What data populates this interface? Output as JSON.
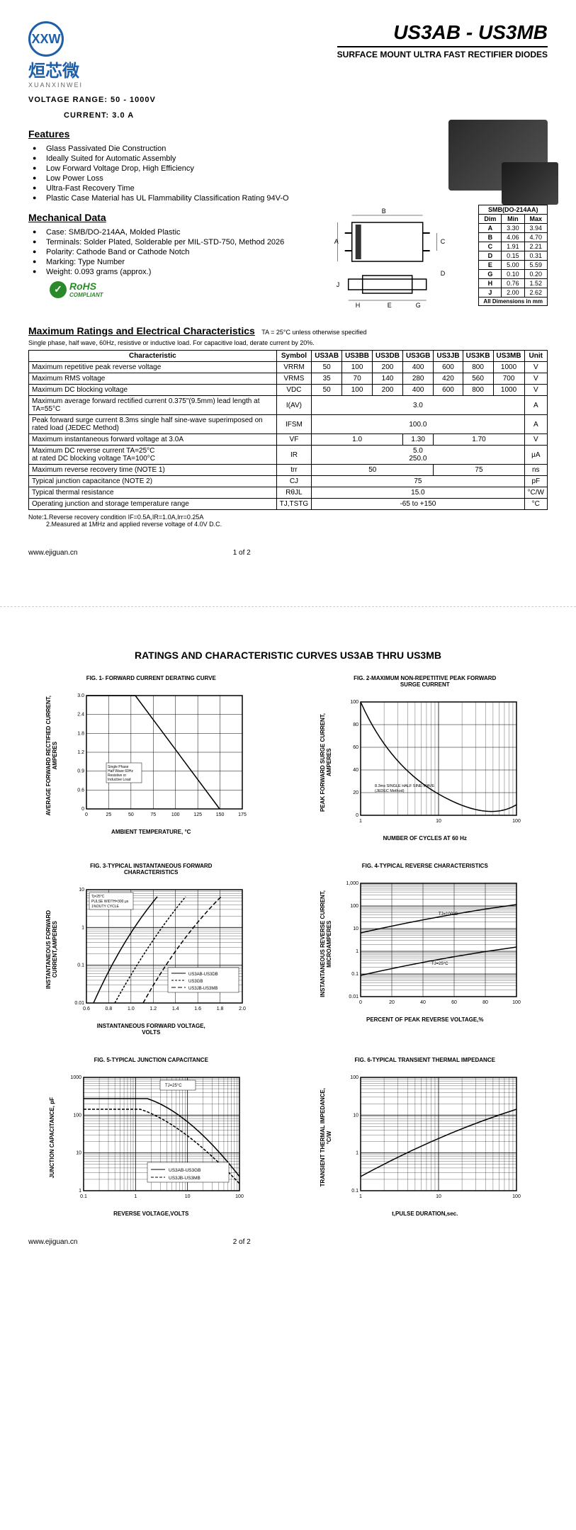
{
  "company": {
    "name": "烜芯微",
    "pinyin": "XUANXINWEI",
    "logo_initials": "XXW"
  },
  "header": {
    "part": "US3AB - US3MB",
    "subtitle": "SURFACE MOUNT ULTRA FAST RECTIFIER DIODES",
    "voltage_label": "VOLTAGE RANGE:",
    "voltage_value": "50 - 1000V",
    "current_label": "CURRENT:",
    "current_value": "3.0 A"
  },
  "features": {
    "title": "Features",
    "items": [
      "Glass Passivated Die Construction",
      "Ideally Suited for Automatic Assembly",
      "Low Forward Voltage Drop, High Efficiency",
      "Low Power Loss",
      "Ultra-Fast Recovery Time",
      "Plastic Case Material has UL Flammability Classification Rating 94V-O"
    ]
  },
  "mechanical": {
    "title": "Mechanical Data",
    "items": [
      "Case: SMB/DO-214AA, Molded Plastic",
      "Terminals: Solder Plated, Solderable per MIL-STD-750, Method 2026",
      "Polarity: Cathode Band or Cathode Notch",
      "Marking: Type Number",
      "Weight: 0.093 grams (approx.)"
    ]
  },
  "rohs": {
    "main": "RoHS",
    "sub": "COMPLIANT"
  },
  "dimensions": {
    "header": "SMB(DO-214AA)",
    "cols": [
      "Dim",
      "Min",
      "Max"
    ],
    "rows": [
      [
        "A",
        "3.30",
        "3.94"
      ],
      [
        "B",
        "4.06",
        "4.70"
      ],
      [
        "C",
        "1.91",
        "2.21"
      ],
      [
        "D",
        "0.15",
        "0.31"
      ],
      [
        "E",
        "5.00",
        "5.59"
      ],
      [
        "G",
        "0.10",
        "0.20"
      ],
      [
        "H",
        "0.76",
        "1.52"
      ],
      [
        "J",
        "2.00",
        "2.62"
      ]
    ],
    "footer": "All Dimensions in mm"
  },
  "ratings": {
    "title": "Maximum Ratings and Electrical Characteristics",
    "condition": "TA = 25°C unless otherwise specified",
    "note": "Single phase, half wave, 60Hz, resistive or inductive load. For capacitive load, derate current by 20%.",
    "headers": [
      "Characteristic",
      "Symbol",
      "US3AB",
      "US3BB",
      "US3DB",
      "US3GB",
      "US3JB",
      "US3KB",
      "US3MB",
      "Unit"
    ],
    "rows": [
      {
        "char": "Maximum repetitive peak reverse voltage",
        "sym": "VRRM",
        "vals": [
          "50",
          "100",
          "200",
          "400",
          "600",
          "800",
          "1000"
        ],
        "unit": "V"
      },
      {
        "char": "Maximum RMS voltage",
        "sym": "VRMS",
        "vals": [
          "35",
          "70",
          "140",
          "280",
          "420",
          "560",
          "700"
        ],
        "unit": "V"
      },
      {
        "char": "Maximum DC blocking voltage",
        "sym": "VDC",
        "vals": [
          "50",
          "100",
          "200",
          "400",
          "600",
          "800",
          "1000"
        ],
        "unit": "V"
      },
      {
        "char": "Maximum average forward rectified current 0.375\"(9.5mm) lead length at TA=55°C",
        "sym": "I(AV)",
        "span": "3.0",
        "unit": "A"
      },
      {
        "char": "Peak forward surge current 8.3ms single half sine-wave superimposed on rated load (JEDEC Method)",
        "sym": "IFSM",
        "span": "100.0",
        "unit": "A"
      },
      {
        "char": "Maximum instantaneous forward voltage at 3.0A",
        "sym": "VF",
        "multi": [
          [
            "1.0",
            3
          ],
          [
            "1.30",
            1
          ],
          [
            "1.70",
            3
          ]
        ],
        "unit": "V"
      },
      {
        "char": "Maximum DC reverse current    TA=25°C\nat rated DC blocking voltage    TA=100°C",
        "sym": "IR",
        "stack": [
          "5.0",
          "250.0"
        ],
        "unit": "μA"
      },
      {
        "char": "Maximum reverse recovery time    (NOTE 1)",
        "sym": "trr",
        "multi": [
          [
            "50",
            4
          ],
          [
            "75",
            3
          ]
        ],
        "unit": "ns"
      },
      {
        "char": "Typical junction capacitance (NOTE 2)",
        "sym": "CJ",
        "span": "75",
        "unit": "pF"
      },
      {
        "char": "Typical thermal resistance",
        "sym": "RθJL",
        "span": "15.0",
        "unit": "°C/W"
      },
      {
        "char": "Operating junction and storage temperature range",
        "sym": "TJ,TSTG",
        "span": "-65 to +150",
        "unit": "°C"
      }
    ],
    "footnotes": "Note:1.Reverse recovery condition IF=0.5A,IR=1.0A,Irr=0.25A\n          2.Measured at 1MHz and applied reverse voltage of 4.0V D.C."
  },
  "footer1": {
    "url": "www.ejiguan.cn",
    "page": "1 of 2"
  },
  "page2": {
    "title": "RATINGS AND CHARACTERISTIC CURVES US3AB THRU US3MB",
    "charts": [
      {
        "title": "FIG. 1- FORWARD CURRENT DERATING CURVE",
        "ylabel": "AVERAGE FORWARD RECTIFIED CURRENT,\nAMPERES",
        "xlabel": "AMBIENT TEMPERATURE, °C"
      },
      {
        "title": "FIG. 2-MAXIMUM NON-REPETITIVE PEAK FORWARD\nSURGE CURRENT",
        "ylabel": "PEAK FORWARD SURGE CURRENT,\nAMPERES",
        "xlabel": "NUMBER OF CYCLES AT 60 Hz"
      },
      {
        "title": "FIG. 3-TYPICAL INSTANTANEOUS FORWARD\nCHARACTERISTICS",
        "ylabel": "INSTANTANEOUS FORWARD\nCURRENT,AMPERES",
        "xlabel": "INSTANTANEOUS FORWARD VOLTAGE,\nVOLTS"
      },
      {
        "title": "FIG. 4-TYPICAL REVERSE CHARACTERISTICS",
        "ylabel": "INSTANTANEOUS REVERSE CURRENT,\nMICROAMPERES",
        "xlabel": "PERCENT OF PEAK REVERSE VOLTAGE,%"
      },
      {
        "title": "FIG. 5-TYPICAL JUNCTION CAPACITANCE",
        "ylabel": "JUNCTION CAPACITANCE, pF",
        "xlabel": "REVERSE VOLTAGE,VOLTS"
      },
      {
        "title": "FIG. 6-TYPICAL TRANSIENT THERMAL IMPEDANCE",
        "ylabel": "TRANSIENT THERMAL IMPEDANCE,\n°C/W",
        "xlabel": "t,PULSE DURATION,sec."
      }
    ]
  },
  "footer2": {
    "url": "www.ejiguan.cn",
    "page": "2 of 2"
  },
  "chart1": {
    "xticks": [
      "0",
      "25",
      "50",
      "75",
      "100",
      "125",
      "150",
      "175"
    ],
    "yticks": [
      "0",
      "0.6",
      "0.9",
      "1.2",
      "1.8",
      "2.4",
      "3.0"
    ],
    "note": "Single Phase\nHalf Wave 60Hz\nResistive or\nInductive Load",
    "line": [
      [
        0,
        0
      ],
      [
        55,
        0
      ],
      [
        150,
        180
      ]
    ]
  },
  "chart2": {
    "xticks": [
      "1",
      "10",
      "100"
    ],
    "yticks": [
      "0",
      "20",
      "40",
      "60",
      "80",
      "100"
    ],
    "note": "8.3ms SINGLE HALF SINE-WAVE\n(JEDEC Method)",
    "line": "M0,0 Q40,100 120,140 L240,160"
  },
  "chart3": {
    "xticks": [
      "0.6",
      "0.8",
      "1.0",
      "1.2",
      "1.4",
      "1.6",
      "1.8",
      "2.0"
    ],
    "yticks": [
      "0.01",
      "0.1",
      "1",
      "10"
    ],
    "legend": [
      "US3AB-US3DB",
      "US3GB",
      "US3JB-US3MB"
    ],
    "note": "Tj=25°C\nPULSE WIDTH=300 μs\n1%DUTY CYCLE"
  },
  "chart4": {
    "xticks": [
      "0",
      "20",
      "40",
      "60",
      "80",
      "100"
    ],
    "yticks": [
      "0.01",
      "0.1",
      "1",
      "10",
      "100",
      "1,000"
    ],
    "labels": [
      "TJ=100°C",
      "TJ=25°C"
    ]
  },
  "chart5": {
    "xticks": [
      "0.1",
      "1",
      "10",
      "100"
    ],
    "yticks": [
      "1",
      "10",
      "100",
      "1000"
    ],
    "legend": [
      "US3AB-US3GB",
      "US3JB-US3MB"
    ],
    "note": "TJ=25°C"
  },
  "chart6": {
    "xticks": [
      "1",
      "10",
      "100"
    ],
    "yticks": [
      "0.1",
      "1",
      "10",
      "100"
    ]
  }
}
